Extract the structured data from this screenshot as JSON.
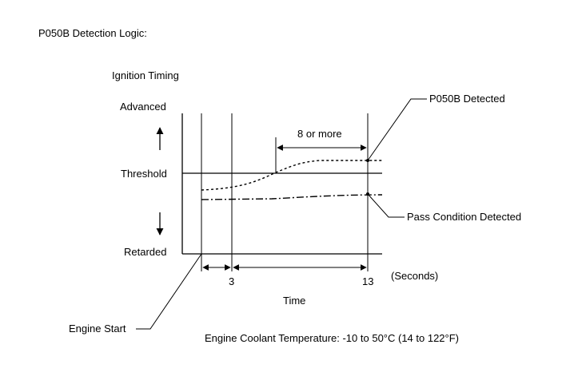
{
  "title": "P050B Detection Logic:",
  "y_axis": {
    "label": "Ignition Timing",
    "top": "Advanced",
    "middle": "Threshold",
    "bottom": "Retarded"
  },
  "time_marks": {
    "t1": "3",
    "t2": "13",
    "unit": "(Seconds)"
  },
  "x_axis_label": "Time",
  "duration_label": "8 or more",
  "callouts": {
    "detected": "P050B Detected",
    "pass": "Pass Condition Detected",
    "engine_start": "Engine Start"
  },
  "footnote": "Engine Coolant Temperature: -10 to 50°C (14 to 122°F)"
}
